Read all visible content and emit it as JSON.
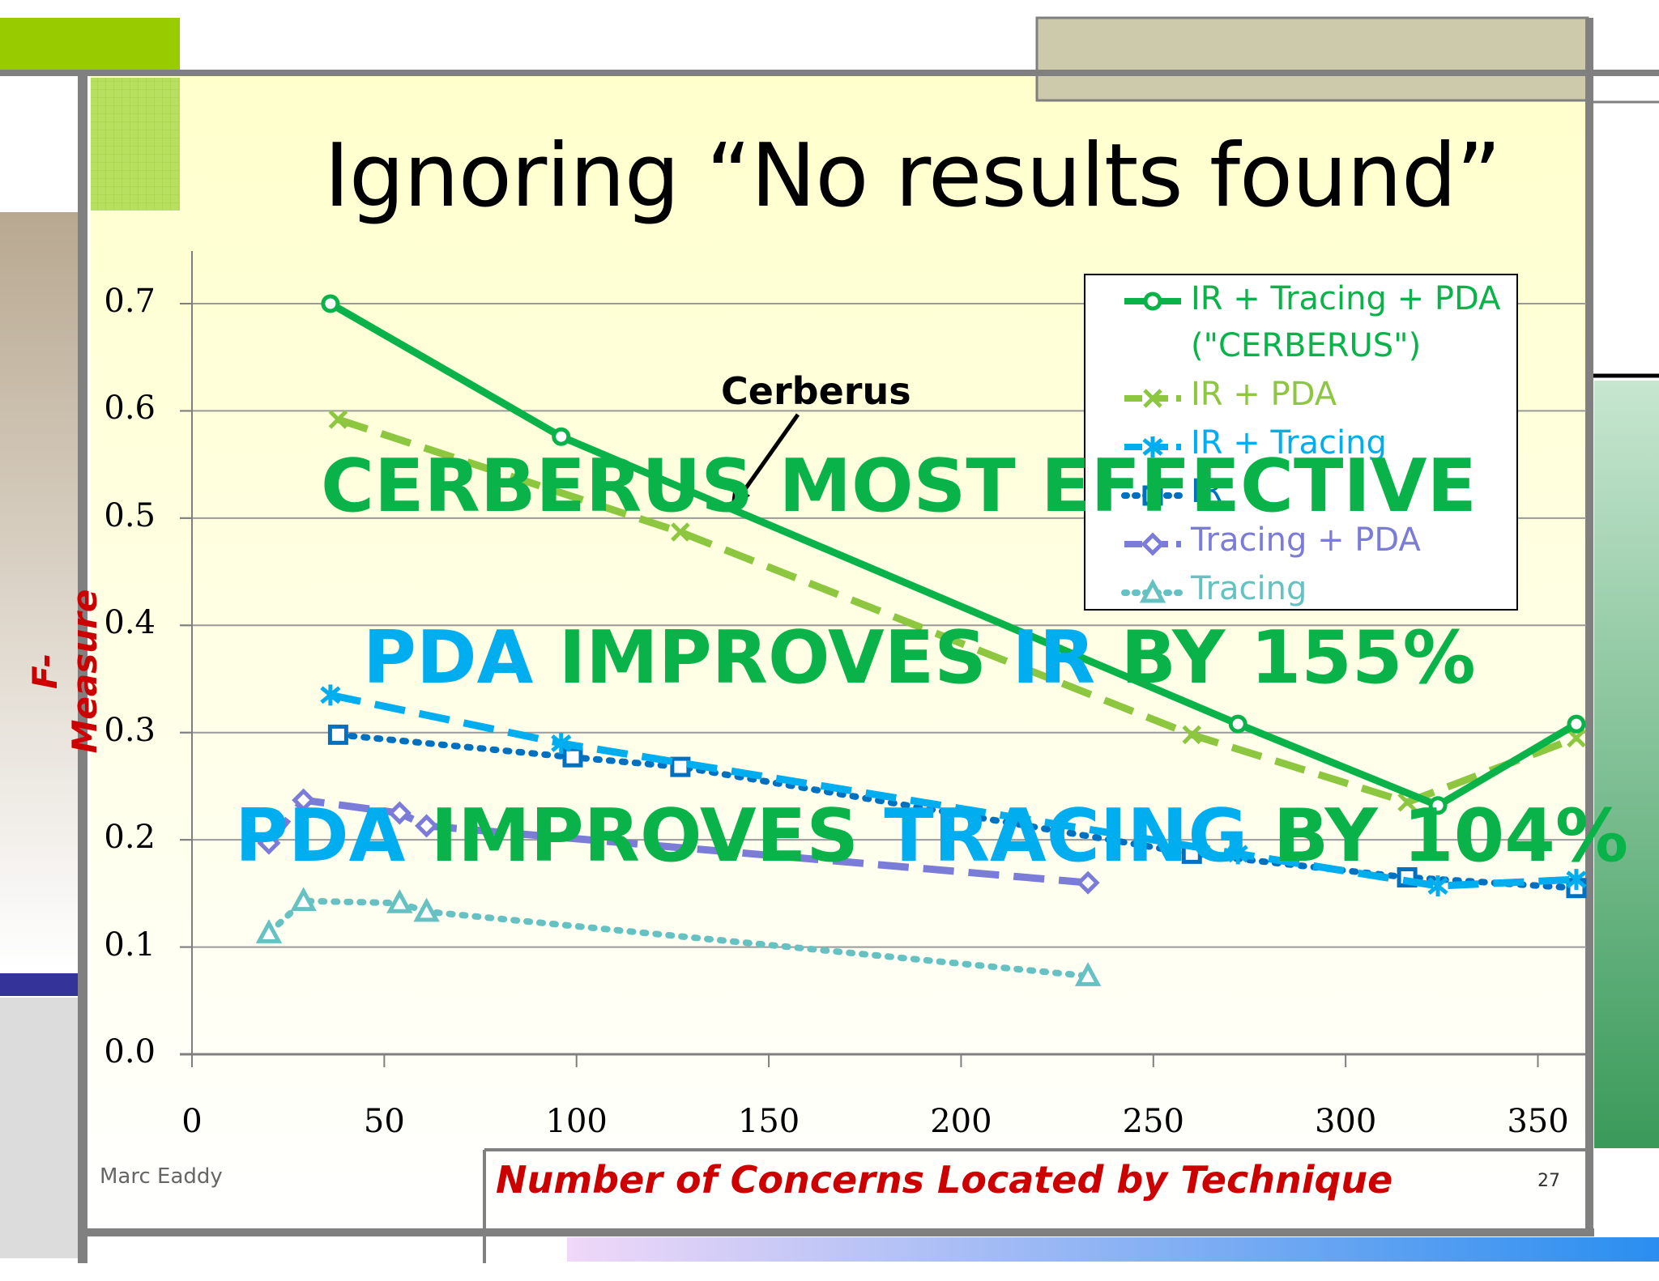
{
  "slide": {
    "title": "Ignoring “No results found”",
    "footer_left": "Marc Eaddy",
    "page_number": "27",
    "colors": {
      "title_band_green": "#99cc00",
      "frame_gray": "#808080",
      "plot_background": "#ffffcc",
      "accent_red": "#cc0000"
    }
  },
  "callouts": {
    "cerberus_label": "Cerberus",
    "line1": "CERBERUS MOST EFFECTIVE",
    "line2_a": "PDA ",
    "line2_b": "IMPROVES ",
    "line2_c": "IR ",
    "line2_d": "BY 155%",
    "line3_a": "PDA ",
    "line3_b": "IMPROVES ",
    "line3_c": "TRACING ",
    "line3_d": "BY 104%"
  },
  "chart_data": {
    "type": "line",
    "xlabel": "Number of Concerns Located by Technique",
    "ylabel": "F-Measure",
    "xlim": [
      0,
      360
    ],
    "ylim": [
      0,
      0.7
    ],
    "x_ticks": [
      "0",
      "50",
      "100",
      "150",
      "200",
      "250",
      "300",
      "350"
    ],
    "y_ticks": [
      "0.0",
      "0.1",
      "0.2",
      "0.3",
      "0.4",
      "0.5",
      "0.6",
      "0.7"
    ],
    "grid": "horizontal",
    "legend_position": "top-right",
    "series": [
      {
        "name": "IR + Tracing + PDA (\"CERBERUS\")",
        "legend_line1": "IR + Tracing + PDA",
        "legend_line2": "(\"CERBERUS\")",
        "color": "#0ab34a",
        "dash": "solid",
        "marker": "circle",
        "x": [
          36,
          96,
          272,
          324,
          360
        ],
        "y": [
          0.7,
          0.576,
          0.308,
          0.232,
          0.308
        ]
      },
      {
        "name": "IR + PDA",
        "color": "#8dc63f",
        "dash": "dashed",
        "marker": "x",
        "x": [
          38,
          127,
          260,
          316,
          360
        ],
        "y": [
          0.592,
          0.487,
          0.298,
          0.235,
          0.295
        ]
      },
      {
        "name": "IR + Tracing",
        "color": "#00aeef",
        "dash": "dashed",
        "marker": "asterisk",
        "x": [
          36,
          96,
          272,
          324,
          360
        ],
        "y": [
          0.335,
          0.29,
          0.187,
          0.157,
          0.163
        ]
      },
      {
        "name": "IR",
        "color": "#0070c0",
        "dash": "dotted",
        "marker": "square",
        "x": [
          38,
          99,
          127,
          260,
          316,
          360
        ],
        "y": [
          0.298,
          0.277,
          0.268,
          0.187,
          0.165,
          0.155
        ]
      },
      {
        "name": "Tracing + PDA",
        "color": "#7b7bd8",
        "dash": "dashed",
        "marker": "diamond",
        "x": [
          20,
          29,
          54,
          61,
          233
        ],
        "y": [
          0.197,
          0.237,
          0.225,
          0.213,
          0.16
        ]
      },
      {
        "name": "Tracing",
        "color": "#66c2c2",
        "dash": "dotted",
        "marker": "triangle",
        "x": [
          20,
          29,
          54,
          61,
          233
        ],
        "y": [
          0.113,
          0.143,
          0.141,
          0.133,
          0.073
        ]
      }
    ]
  }
}
